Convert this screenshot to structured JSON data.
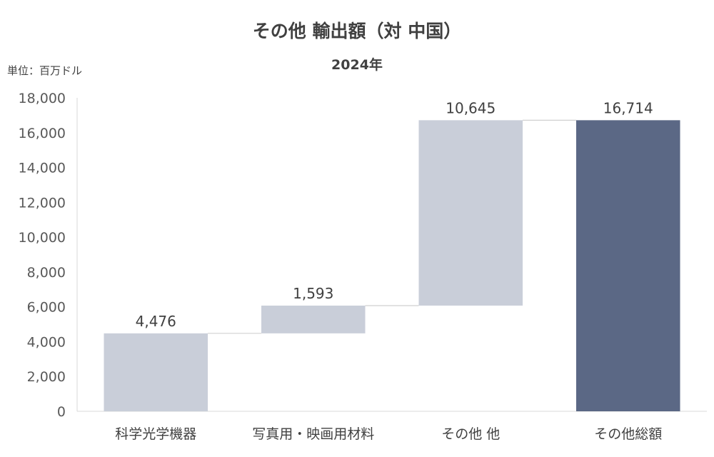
{
  "chart_data": {
    "type": "bar",
    "subtype": "waterfall",
    "title": "その他 輸出額（対 中国）",
    "subtitle": "2024年",
    "unit_label": "単位：百万ドル",
    "categories": [
      "科学光学機器",
      "写真用・映画用材料",
      "その他 他",
      "その他総額"
    ],
    "values": [
      4476,
      1593,
      10645,
      16714
    ],
    "value_labels": [
      "4,476",
      "1,593",
      "10,645",
      "16,714"
    ],
    "is_total": [
      false,
      false,
      false,
      true
    ],
    "ylim": [
      0,
      18000
    ],
    "yticks": [
      0,
      2000,
      4000,
      6000,
      8000,
      10000,
      12000,
      14000,
      16000,
      18000
    ],
    "ytick_labels": [
      "0",
      "2,000",
      "4,000",
      "6,000",
      "8,000",
      "10,000",
      "12,000",
      "14,000",
      "16,000",
      "18,000"
    ],
    "grid": false,
    "colors": {
      "step": "#c9ced9",
      "total": "#5b6885",
      "connector": "#d0d0d0",
      "axis": "#d9d9d9"
    }
  }
}
